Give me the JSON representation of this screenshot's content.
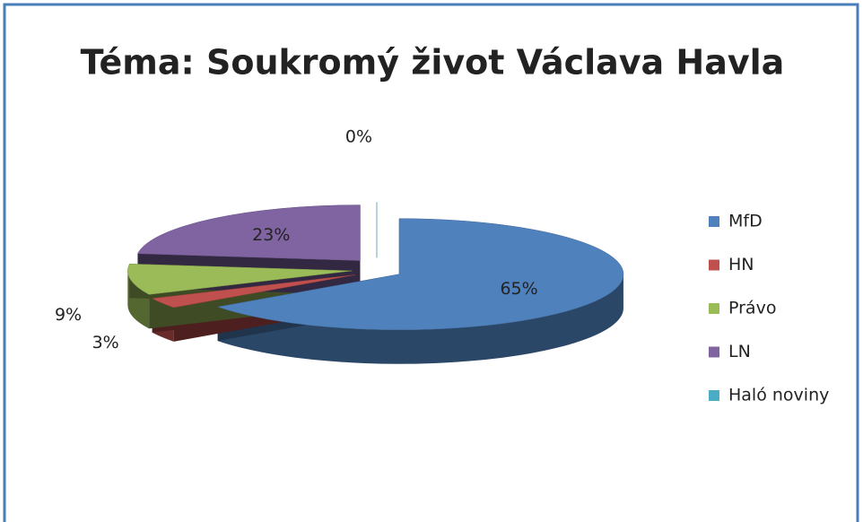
{
  "chart_data": {
    "type": "pie",
    "title": "Téma: Soukromý život Václava Havla",
    "categories": [
      "MfD",
      "HN",
      "Právo",
      "LN",
      "Haló noviny"
    ],
    "values": [
      65,
      3,
      9,
      23,
      0
    ],
    "value_labels": [
      "65%",
      "3%",
      "9%",
      "23%",
      "0%"
    ],
    "colors": [
      "#4f81bd",
      "#c0504d",
      "#9bbb59",
      "#8064a2",
      "#4bacc6"
    ],
    "legend": "right"
  }
}
